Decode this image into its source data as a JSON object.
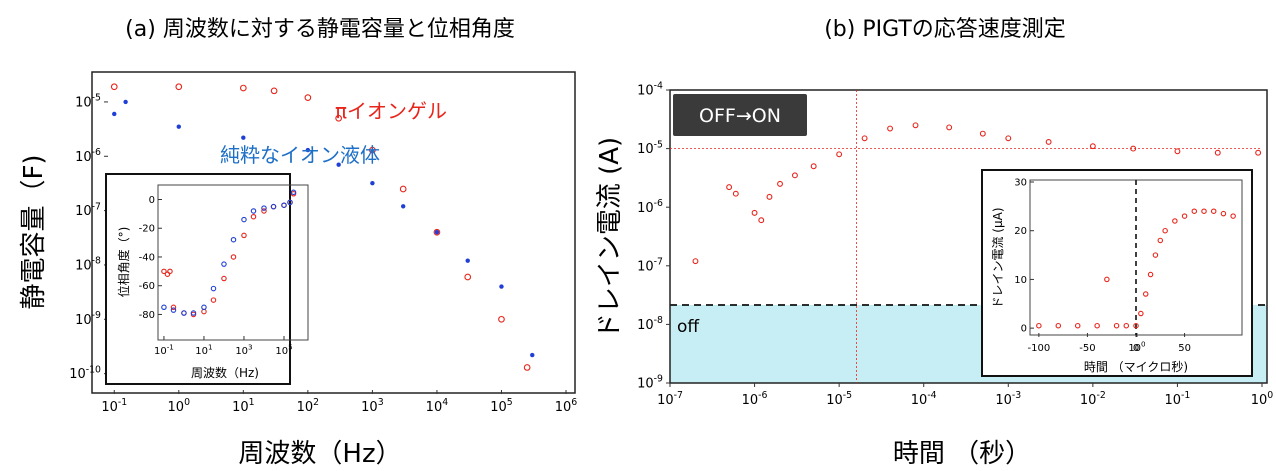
{
  "panel_a": {
    "title": "(a) 周波数に対する静電容量と位相角度",
    "xlabel": "周波数（Hz）",
    "ylabel": "静電容量（F)",
    "series_labels": {
      "gel": "πイオンゲル",
      "liquid": "純粋なイオン液体"
    },
    "inset": {
      "xlabel": "周波数（Hz)",
      "ylabel": "位相角度（°)"
    }
  },
  "panel_b": {
    "title": "(b) PIGTの応答速度測定",
    "xlabel": "時間 （秒）",
    "ylabel": "ドレイン電流 (A)",
    "badge": "OFF→ON",
    "off_label": "off",
    "inset": {
      "xlabel": "時間 （マイクロ秒)",
      "ylabel": "ドレイン電流 (μA)"
    }
  },
  "colors": {
    "red": "#e8251b",
    "blue": "#1f3fd6",
    "liquid_label": "#1e6fc7",
    "off_region": "#c6eef4",
    "badge_bg": "#3a3a3a"
  },
  "chart_data": [
    {
      "id": "capacitance_vs_frequency",
      "type": "scatter",
      "xscale": "log",
      "yscale": "log",
      "xlim": [
        0.08,
        1000000
      ],
      "ylim": [
        5e-11,
        3e-05
      ],
      "xticks": [
        "10-1",
        "100",
        "101",
        "102",
        "103",
        "104",
        "105",
        "106"
      ],
      "yticks": [
        "10-10",
        "10-9",
        "10-8",
        "10-7",
        "10-6",
        "10-5"
      ],
      "series": [
        {
          "name": "πイオンゲル",
          "color": "#e8251b",
          "marker": "open-circle",
          "x": [
            0.1,
            1,
            10,
            30,
            100,
            300,
            1000,
            3000,
            10000,
            30000,
            100000,
            250000
          ],
          "y": [
            1.9e-05,
            1.9e-05,
            1.8e-05,
            1.6e-05,
            1.2e-05,
            5e-06,
            1.3e-06,
            2.5e-07,
            4e-08,
            6e-09,
            1e-09,
            1.3e-10
          ]
        },
        {
          "name": "純粋なイオン液体",
          "color": "#1f3fd6",
          "marker": "filled-dot",
          "x": [
            0.1,
            0.15,
            1,
            10,
            100,
            300,
            1000,
            3000,
            10000,
            30000,
            100000,
            300000
          ],
          "y": [
            6e-06,
            1e-05,
            3.5e-06,
            2.2e-06,
            1.3e-06,
            7e-07,
            3.2e-07,
            1.2e-07,
            4e-08,
            1.2e-08,
            4e-09,
            2.2e-10
          ]
        }
      ]
    },
    {
      "id": "phase_angle_inset",
      "type": "scatter",
      "xscale": "log",
      "xlim": [
        0.08,
        1000000
      ],
      "ylim": [
        -95,
        8
      ],
      "xticks": [
        "10-1",
        "101",
        "103",
        "105"
      ],
      "yticks": [
        "0",
        "-20",
        "-40",
        "-60",
        "-80"
      ],
      "series": [
        {
          "color": "#e8251b",
          "marker": "open-circle",
          "x": [
            0.1,
            0.15,
            0.2,
            0.3,
            1,
            3,
            10,
            30,
            100,
            300,
            1000,
            3000,
            10000,
            30000,
            100000,
            200000,
            300000
          ],
          "y": [
            -50,
            -52,
            -50,
            -75,
            -79,
            -80,
            -78,
            -70,
            -55,
            -40,
            -25,
            -12,
            -8,
            -5,
            -4,
            -2,
            4
          ]
        },
        {
          "color": "#1f3fd6",
          "marker": "open-circle",
          "x": [
            0.1,
            0.3,
            1,
            3,
            10,
            30,
            100,
            300,
            1000,
            3000,
            10000,
            30000,
            100000,
            200000,
            300000
          ],
          "y": [
            -75,
            -77,
            -79,
            -79,
            -75,
            -62,
            -45,
            -28,
            -14,
            -8,
            -6,
            -5,
            -4,
            -2,
            5
          ]
        }
      ]
    },
    {
      "id": "drain_current_vs_time",
      "type": "scatter",
      "xscale": "log",
      "yscale": "log",
      "xlim": [
        1e-07,
        1
      ],
      "ylim": [
        1e-09,
        0.0001
      ],
      "xticks": [
        "10-7",
        "10-6",
        "10-5",
        "10-4",
        "10-3",
        "10-2",
        "10-1",
        "100"
      ],
      "yticks": [
        "10-9",
        "10-8",
        "10-7",
        "10-6",
        "10-5",
        "10-4"
      ],
      "off_threshold": 2e-08,
      "crosshair": {
        "x": 1.6e-05,
        "y": 1e-05
      },
      "series": [
        {
          "color": "#e8251b",
          "marker": "open-circle",
          "x": [
            2e-07,
            5e-07,
            6e-07,
            1e-06,
            1.2e-06,
            1.5e-06,
            2e-06,
            3e-06,
            5e-06,
            1e-05,
            2e-05,
            4e-05,
            8e-05,
            0.0002,
            0.0005,
            0.001,
            0.003,
            0.01,
            0.03,
            0.1,
            0.3,
            0.9
          ],
          "y": [
            1.2e-07,
            2.2e-06,
            1.7e-06,
            8e-07,
            6e-07,
            1.5e-06,
            2.5e-06,
            3.5e-06,
            5e-06,
            8e-06,
            1.5e-05,
            2.2e-05,
            2.5e-05,
            2.3e-05,
            1.8e-05,
            1.5e-05,
            1.3e-05,
            1.1e-05,
            1e-05,
            9e-06,
            8.5e-06,
            8.5e-06
          ]
        }
      ]
    },
    {
      "id": "drain_current_linear_inset",
      "type": "scatter",
      "xlim": [
        -105,
        105
      ],
      "ylim": [
        -1,
        30
      ],
      "xticks": [
        "-100",
        "-50",
        "0",
        "50",
        "100"
      ],
      "yticks": [
        "0",
        "10",
        "20",
        "30"
      ],
      "vline_x": 0,
      "series": [
        {
          "color": "#e8251b",
          "marker": "open-circle",
          "x": [
            -100,
            -80,
            -60,
            -40,
            -30,
            -20,
            -10,
            0,
            5,
            10,
            15,
            20,
            25,
            30,
            40,
            50,
            60,
            70,
            80,
            90,
            100
          ],
          "y": [
            0.5,
            0.5,
            0.5,
            0.5,
            10,
            0.5,
            0.5,
            0.5,
            3,
            7,
            11,
            15,
            18,
            20,
            22,
            23,
            24,
            24,
            24,
            23.5,
            23
          ]
        }
      ]
    }
  ]
}
